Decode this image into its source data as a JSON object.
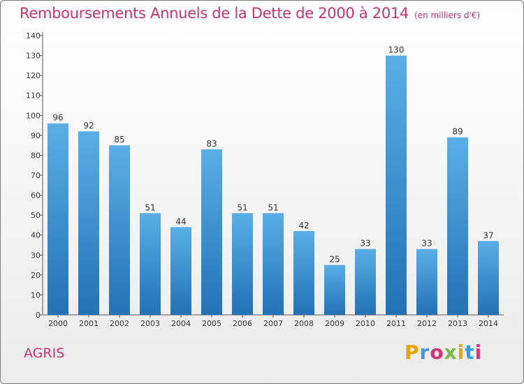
{
  "title": "Remboursements Annuels de la Dette de 2000 à 2014",
  "subtitle": "(en milliers d'€)",
  "commune": "AGRIS",
  "logo": {
    "p": "P",
    "r": "r",
    "o": "o",
    "x": "x",
    "i1": "i",
    "t": "t",
    "i2": "i"
  },
  "colors": {
    "bar_top": "#5aaee6",
    "bar_bottom": "#2272b5",
    "title": "#c8326e"
  },
  "chart_data": {
    "type": "bar",
    "categories": [
      "2000",
      "2001",
      "2002",
      "2003",
      "2004",
      "2005",
      "2006",
      "2007",
      "2008",
      "2009",
      "2010",
      "2011",
      "2012",
      "2013",
      "2014"
    ],
    "values": [
      96,
      92,
      85,
      51,
      44,
      83,
      51,
      51,
      42,
      25,
      33,
      130,
      33,
      89,
      37
    ],
    "title": "Remboursements Annuels de la Dette de 2000 à 2014",
    "xlabel": "",
    "ylabel": "",
    "ylim": [
      0,
      140
    ],
    "yticks": [
      0,
      10,
      20,
      30,
      40,
      50,
      60,
      70,
      80,
      90,
      100,
      110,
      120,
      130,
      140
    ],
    "grid": false,
    "legend": "none"
  }
}
